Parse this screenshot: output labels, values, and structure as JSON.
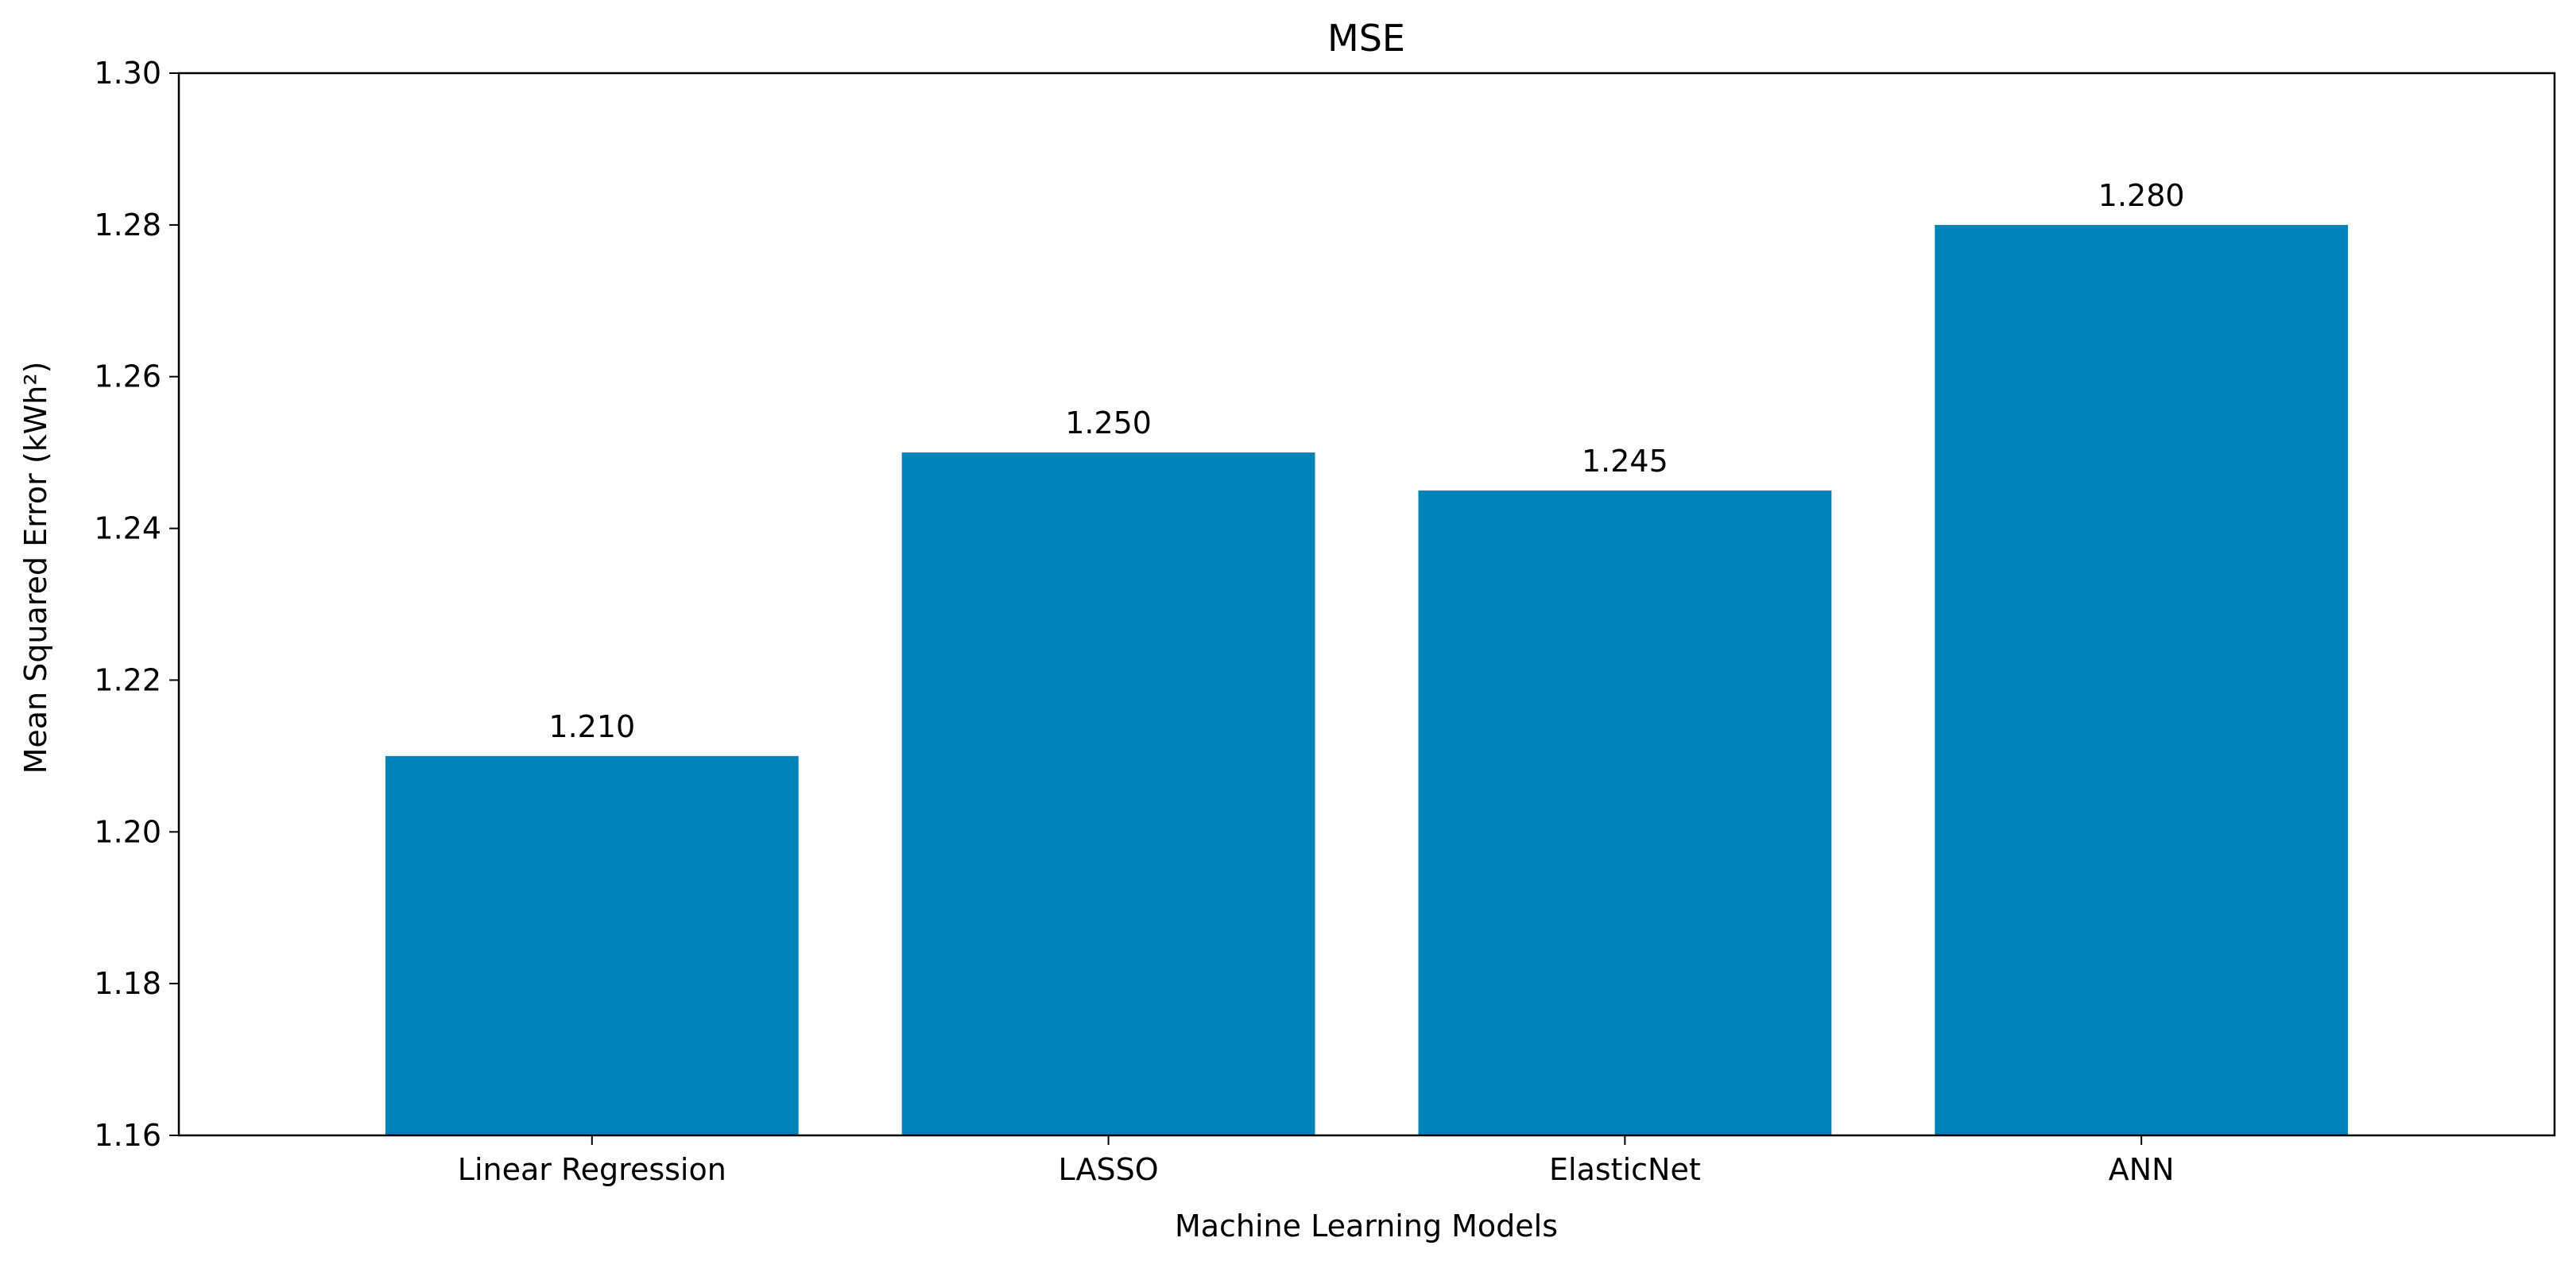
{
  "chart_data": {
    "type": "bar",
    "title": "MSE",
    "xlabel": "Machine Learning Models",
    "ylabel": "Mean Squared Error (kWh²)",
    "categories": [
      "Linear Regression",
      "LASSO",
      "ElasticNet",
      "ANN"
    ],
    "values": [
      1.21,
      1.25,
      1.245,
      1.28
    ],
    "value_labels": [
      "1.210",
      "1.250",
      "1.245",
      "1.280"
    ],
    "ylim": [
      1.16,
      1.3
    ],
    "yticks": [
      1.16,
      1.18,
      1.2,
      1.22,
      1.24,
      1.26,
      1.28,
      1.3
    ],
    "ytick_labels": [
      "1.16",
      "1.18",
      "1.20",
      "1.22",
      "1.24",
      "1.26",
      "1.28",
      "1.30"
    ],
    "bar_color": "#0083b8",
    "grid": false,
    "legend": "none"
  }
}
